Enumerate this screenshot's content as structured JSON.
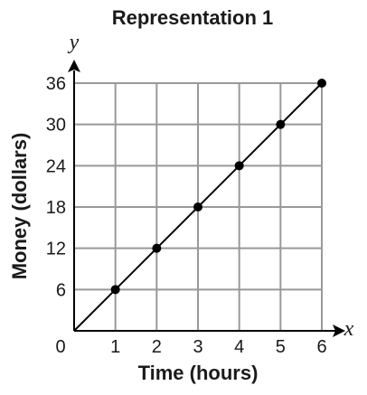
{
  "chart_data": {
    "type": "line",
    "title": "Representation 1",
    "xlabel": "Time (hours)",
    "ylabel": "Money (dollars)",
    "x_axis_var": "x",
    "y_axis_var": "y",
    "origin_label": "0",
    "x": [
      1,
      2,
      3,
      4,
      5,
      6
    ],
    "y": [
      6,
      12,
      18,
      24,
      30,
      36
    ],
    "line": {
      "from": [
        0,
        0
      ],
      "to": [
        6,
        36
      ]
    },
    "x_ticks": [
      "1",
      "2",
      "3",
      "4",
      "5",
      "6"
    ],
    "y_ticks": [
      "6",
      "12",
      "18",
      "24",
      "30",
      "36"
    ],
    "xlim": [
      0,
      6
    ],
    "ylim": [
      0,
      36
    ],
    "grid": true,
    "colors": {
      "grid": "#999999",
      "line": "#000000",
      "points": "#000000"
    }
  }
}
